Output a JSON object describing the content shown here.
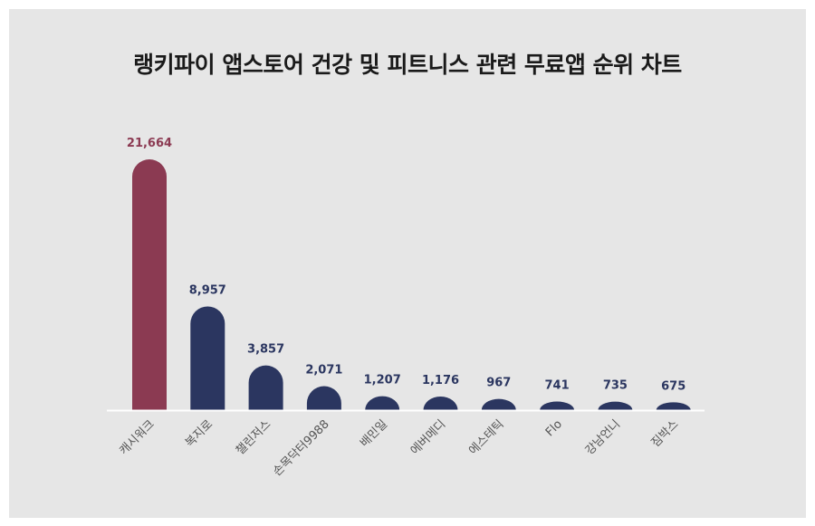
{
  "colors": {
    "background": "#e6e6e6",
    "highlight": "#8b3a52",
    "bar": "#2b3660",
    "axis": "#ffffff",
    "category_label": "#555555"
  },
  "chart_data": {
    "type": "bar",
    "title": "랭키파이 앱스토어 건강 및 피트니스 관련 무료앱 순위 차트",
    "categories": [
      "캐시워크",
      "복지로",
      "챌린저스",
      "손목닥터9988",
      "배민일",
      "에버메디",
      "에스테틱",
      "Flo",
      "강남언니",
      "짐박스"
    ],
    "values": [
      21664,
      8957,
      3857,
      2071,
      1207,
      1176,
      967,
      741,
      735,
      675
    ],
    "value_labels": [
      "21,664",
      "8,957",
      "3,857",
      "2,071",
      "1,207",
      "1,176",
      "967",
      "741",
      "735",
      "675"
    ],
    "highlight_index": 0,
    "xlabel": "",
    "ylabel": "",
    "ylim": [
      0,
      21664
    ],
    "grid": false,
    "legend": "none"
  }
}
